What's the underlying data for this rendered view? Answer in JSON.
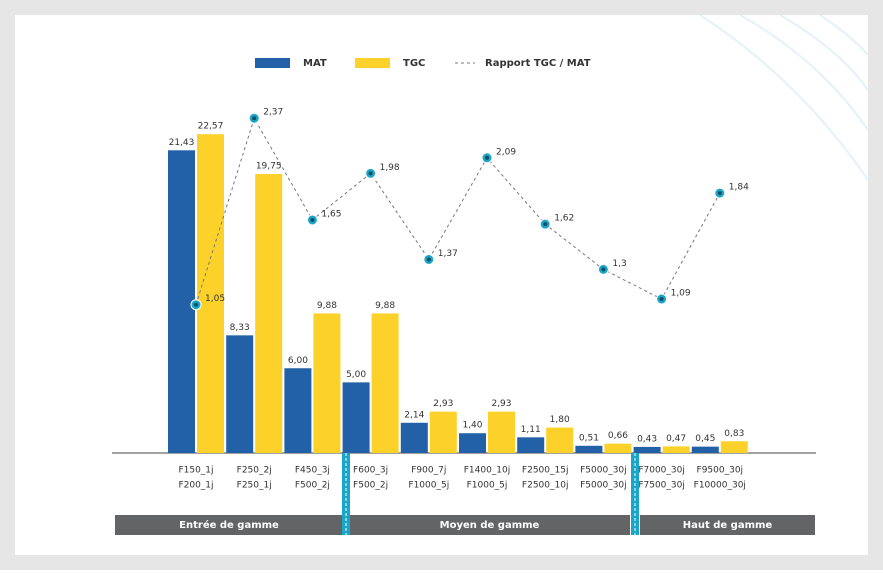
{
  "chart_data": {
    "type": "bar",
    "categories": [
      [
        "F150_1j",
        "F200_1j"
      ],
      [
        "F250_2j",
        "F250_1j"
      ],
      [
        "F450_3j",
        "F500_2j"
      ],
      [
        "F600_3j",
        "F500_2j"
      ],
      [
        "F900_7j",
        "F1000_5j"
      ],
      [
        "F1400_10j",
        "F1000_5j"
      ],
      [
        "F2500_15j",
        "F2500_10j"
      ],
      [
        "F5000_30j",
        "F5000_30j"
      ],
      [
        "F7000_30j",
        "F7500_30j"
      ],
      [
        "F9500_30j",
        "F10000_30j"
      ]
    ],
    "series": [
      {
        "name": "MAT",
        "type": "bar",
        "color": "#2260a8",
        "values": [
          21.43,
          8.33,
          6.0,
          5.0,
          2.14,
          1.4,
          1.11,
          0.51,
          0.43,
          0.45
        ],
        "value_labels": [
          "21,43",
          "8,33",
          "6,00",
          "5,00",
          "2,14",
          "1,40",
          "1,11",
          "0,51",
          "0,43",
          "0,45"
        ]
      },
      {
        "name": "TGC",
        "type": "bar",
        "color": "#fcd22a",
        "values": [
          22.57,
          19.75,
          9.88,
          9.88,
          2.93,
          2.93,
          1.8,
          0.66,
          0.47,
          0.83
        ],
        "value_labels": [
          "22,57",
          "19,75",
          "9,88",
          "9,88",
          "2,93",
          "2,93",
          "1,80",
          "0,66",
          "0,47",
          "0,83"
        ]
      },
      {
        "name": "Rapport TGC / MAT",
        "type": "line",
        "axis": "y2",
        "color": "#1aa6c8",
        "values": [
          1.05,
          2.37,
          1.65,
          1.98,
          1.37,
          2.09,
          1.62,
          1.3,
          1.09,
          1.84
        ],
        "value_labels": [
          "1,05",
          "2,37",
          "1,65",
          "1,98",
          "1,37",
          "2,09",
          "1,62",
          "1,3",
          "1,09",
          "1,84"
        ]
      }
    ],
    "ylim": [
      0,
      24
    ],
    "y2lim": [
      0,
      2.4
    ],
    "segments": [
      "Entrée de gamme",
      "Moyen de gamme",
      "Haut de gamme"
    ]
  }
}
